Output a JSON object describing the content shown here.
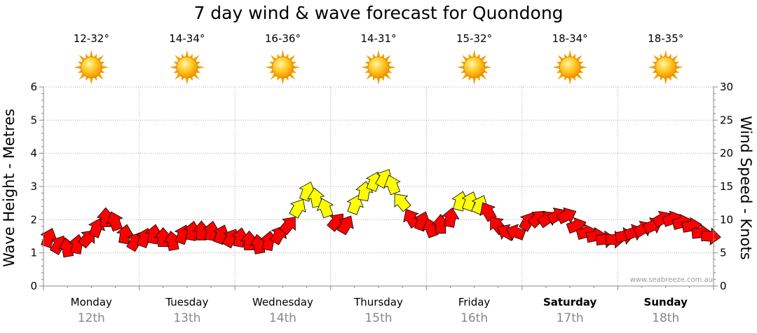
{
  "chart_data": {
    "type": "line",
    "title": "7 day wind & wave forecast for Quondong",
    "ylabel": "Wave Height - Metres",
    "y2label": "Wind Speed - Knots",
    "ylim": [
      0,
      6
    ],
    "y2lim": [
      0,
      30
    ],
    "yticks": [
      "0",
      "1",
      "2",
      "3",
      "4",
      "5",
      "6"
    ],
    "y2ticks": [
      "0",
      "5",
      "10",
      "15",
      "20",
      "25",
      "30"
    ],
    "days": [
      {
        "name": "Monday",
        "date": "12th",
        "temp": "12-32°",
        "bold": false
      },
      {
        "name": "Tuesday",
        "date": "13th",
        "temp": "14-34°",
        "bold": false
      },
      {
        "name": "Wednesday",
        "date": "14th",
        "temp": "16-36°",
        "bold": false
      },
      {
        "name": "Thursday",
        "date": "15th",
        "temp": "14-31°",
        "bold": false
      },
      {
        "name": "Friday",
        "date": "16th",
        "temp": "15-32°",
        "bold": false
      },
      {
        "name": "Saturday",
        "date": "17th",
        "temp": "18-34°",
        "bold": true
      },
      {
        "name": "Sunday",
        "date": "18th",
        "temp": "18-35°",
        "bold": true
      }
    ],
    "weather_icon": "sun-icon",
    "watermark": "www.seabreeze.com.au",
    "wind_series": {
      "name": "Wind Speed (knots)",
      "time_days": [
        0.05,
        0.15,
        0.25,
        0.35,
        0.45,
        0.55,
        0.65,
        0.75,
        0.85,
        0.95,
        1.05,
        1.15,
        1.25,
        1.35,
        1.45,
        1.55,
        1.65,
        1.75,
        1.85,
        1.95,
        2.05,
        2.15,
        2.25,
        2.35,
        2.45,
        2.55,
        2.65,
        2.75,
        2.85,
        2.95,
        3.05,
        3.15,
        3.25,
        3.35,
        3.45,
        3.55,
        3.65,
        3.75,
        3.85,
        3.95,
        4.05,
        4.15,
        4.25,
        4.35,
        4.45,
        4.55,
        4.65,
        4.75,
        4.85,
        4.95,
        5.05,
        5.15,
        5.25,
        5.35,
        5.45,
        5.55,
        5.65,
        5.75,
        5.85,
        5.95,
        6.05,
        6.15,
        6.25,
        6.35,
        6.45,
        6.55,
        6.65,
        6.75,
        6.85,
        6.95
      ],
      "knots": [
        7,
        6,
        5.5,
        6,
        7,
        8.5,
        10,
        9.5,
        7.5,
        6.5,
        7,
        7.5,
        7,
        6.5,
        7.5,
        8,
        8,
        8,
        7.5,
        7,
        7,
        6.5,
        6,
        6.5,
        7.5,
        9,
        11.5,
        14,
        13,
        11.5,
        9.5,
        9,
        12,
        14,
        15.5,
        16,
        15,
        12.5,
        10,
        9.5,
        8.5,
        9,
        10,
        12.5,
        12.5,
        12,
        11,
        9,
        8,
        8,
        9.5,
        10,
        10,
        10.5,
        10.5,
        9,
        8,
        7.5,
        7,
        7,
        7.5,
        8,
        8.5,
        9,
        10,
        10,
        9.5,
        9,
        8,
        7.5
      ],
      "direction_deg": [
        20,
        30,
        350,
        10,
        40,
        20,
        0,
        340,
        10,
        30,
        20,
        10,
        0,
        350,
        20,
        10,
        0,
        10,
        20,
        30,
        10,
        0,
        350,
        10,
        30,
        40,
        30,
        20,
        350,
        340,
        40,
        30,
        20,
        10,
        20,
        30,
        340,
        320,
        330,
        20,
        340,
        0,
        10,
        15,
        20,
        25,
        330,
        320,
        300,
        290,
        30,
        45,
        55,
        60,
        65,
        70,
        75,
        80,
        85,
        90,
        80,
        70,
        60,
        65,
        60,
        70,
        75,
        80,
        85,
        95
      ],
      "color_rule": "knots >= 11.5 yellow (#ffff00) else red (#ff0000)"
    }
  }
}
